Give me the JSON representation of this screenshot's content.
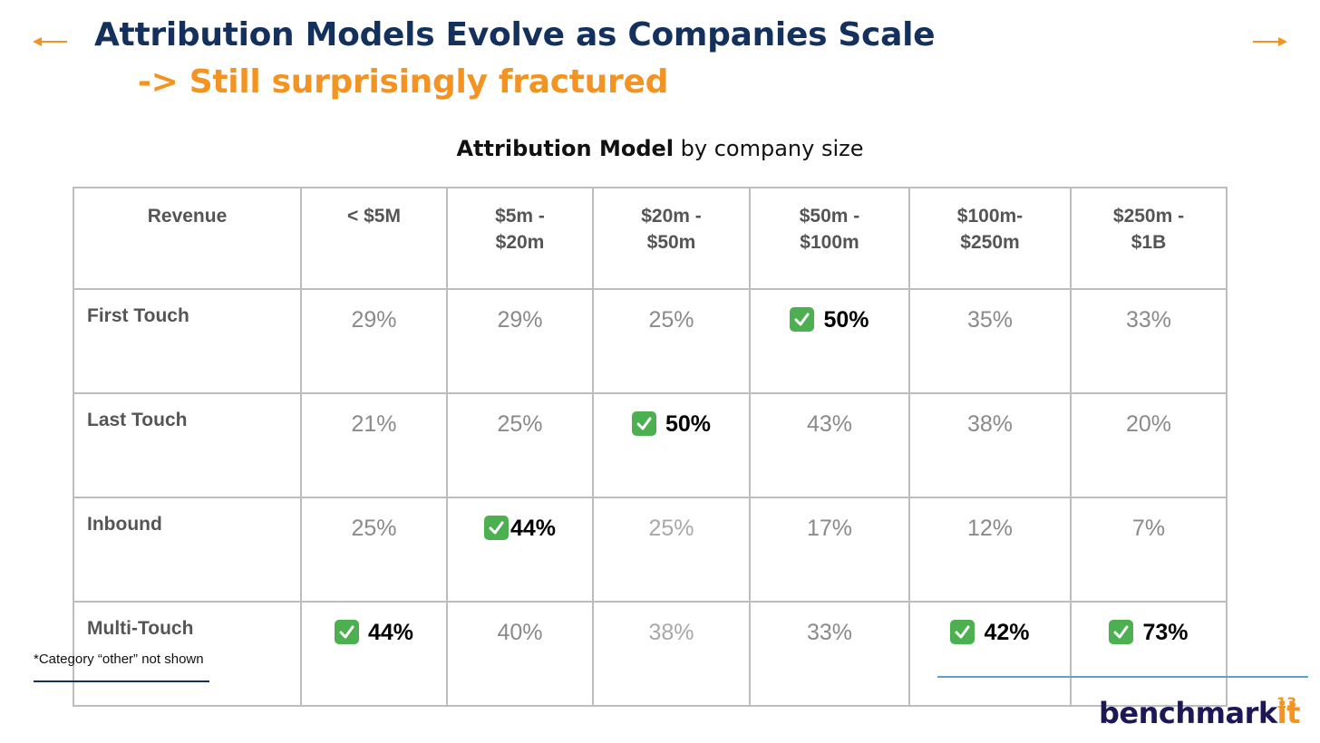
{
  "header": {
    "title": "Attribution Models Evolve as Companies Scale",
    "subtitle": "-> Still surprisingly fractured"
  },
  "table": {
    "title_bold": "Attribution Model",
    "title_rest": " by company size",
    "header_label": "Revenue",
    "columns": [
      {
        "line1": "< $5M",
        "line2": ""
      },
      {
        "line1": "$5m -",
        "line2": "$20m"
      },
      {
        "line1": "$20m -",
        "line2": "$50m"
      },
      {
        "line1": "$50m -",
        "line2": "$100m"
      },
      {
        "line1": "$100m-",
        "line2": "$250m"
      },
      {
        "line1": "$250m -",
        "line2": "$1B"
      }
    ],
    "rows": [
      {
        "label": "First Touch",
        "values": [
          "29%",
          "29%",
          "25%",
          "50%",
          "35%",
          "33%"
        ]
      },
      {
        "label": "Last Touch",
        "values": [
          "21%",
          "25%",
          "50%",
          "43%",
          "38%",
          "20%"
        ]
      },
      {
        "label": "Inbound",
        "values": [
          "25%",
          "44%",
          "25%",
          "17%",
          "12%",
          "7%"
        ]
      },
      {
        "label": "Multi-Touch",
        "values": [
          "44%",
          "40%",
          "38%",
          "33%",
          "42%",
          "73%"
        ]
      }
    ]
  },
  "footnote": "*Category “other” not shown",
  "logo": {
    "text_main": "benchmark",
    "text_accent": "it"
  },
  "page_number": "13",
  "colors": {
    "title": "#13315c",
    "accent": "#f39321",
    "check": "#4caf50"
  }
}
